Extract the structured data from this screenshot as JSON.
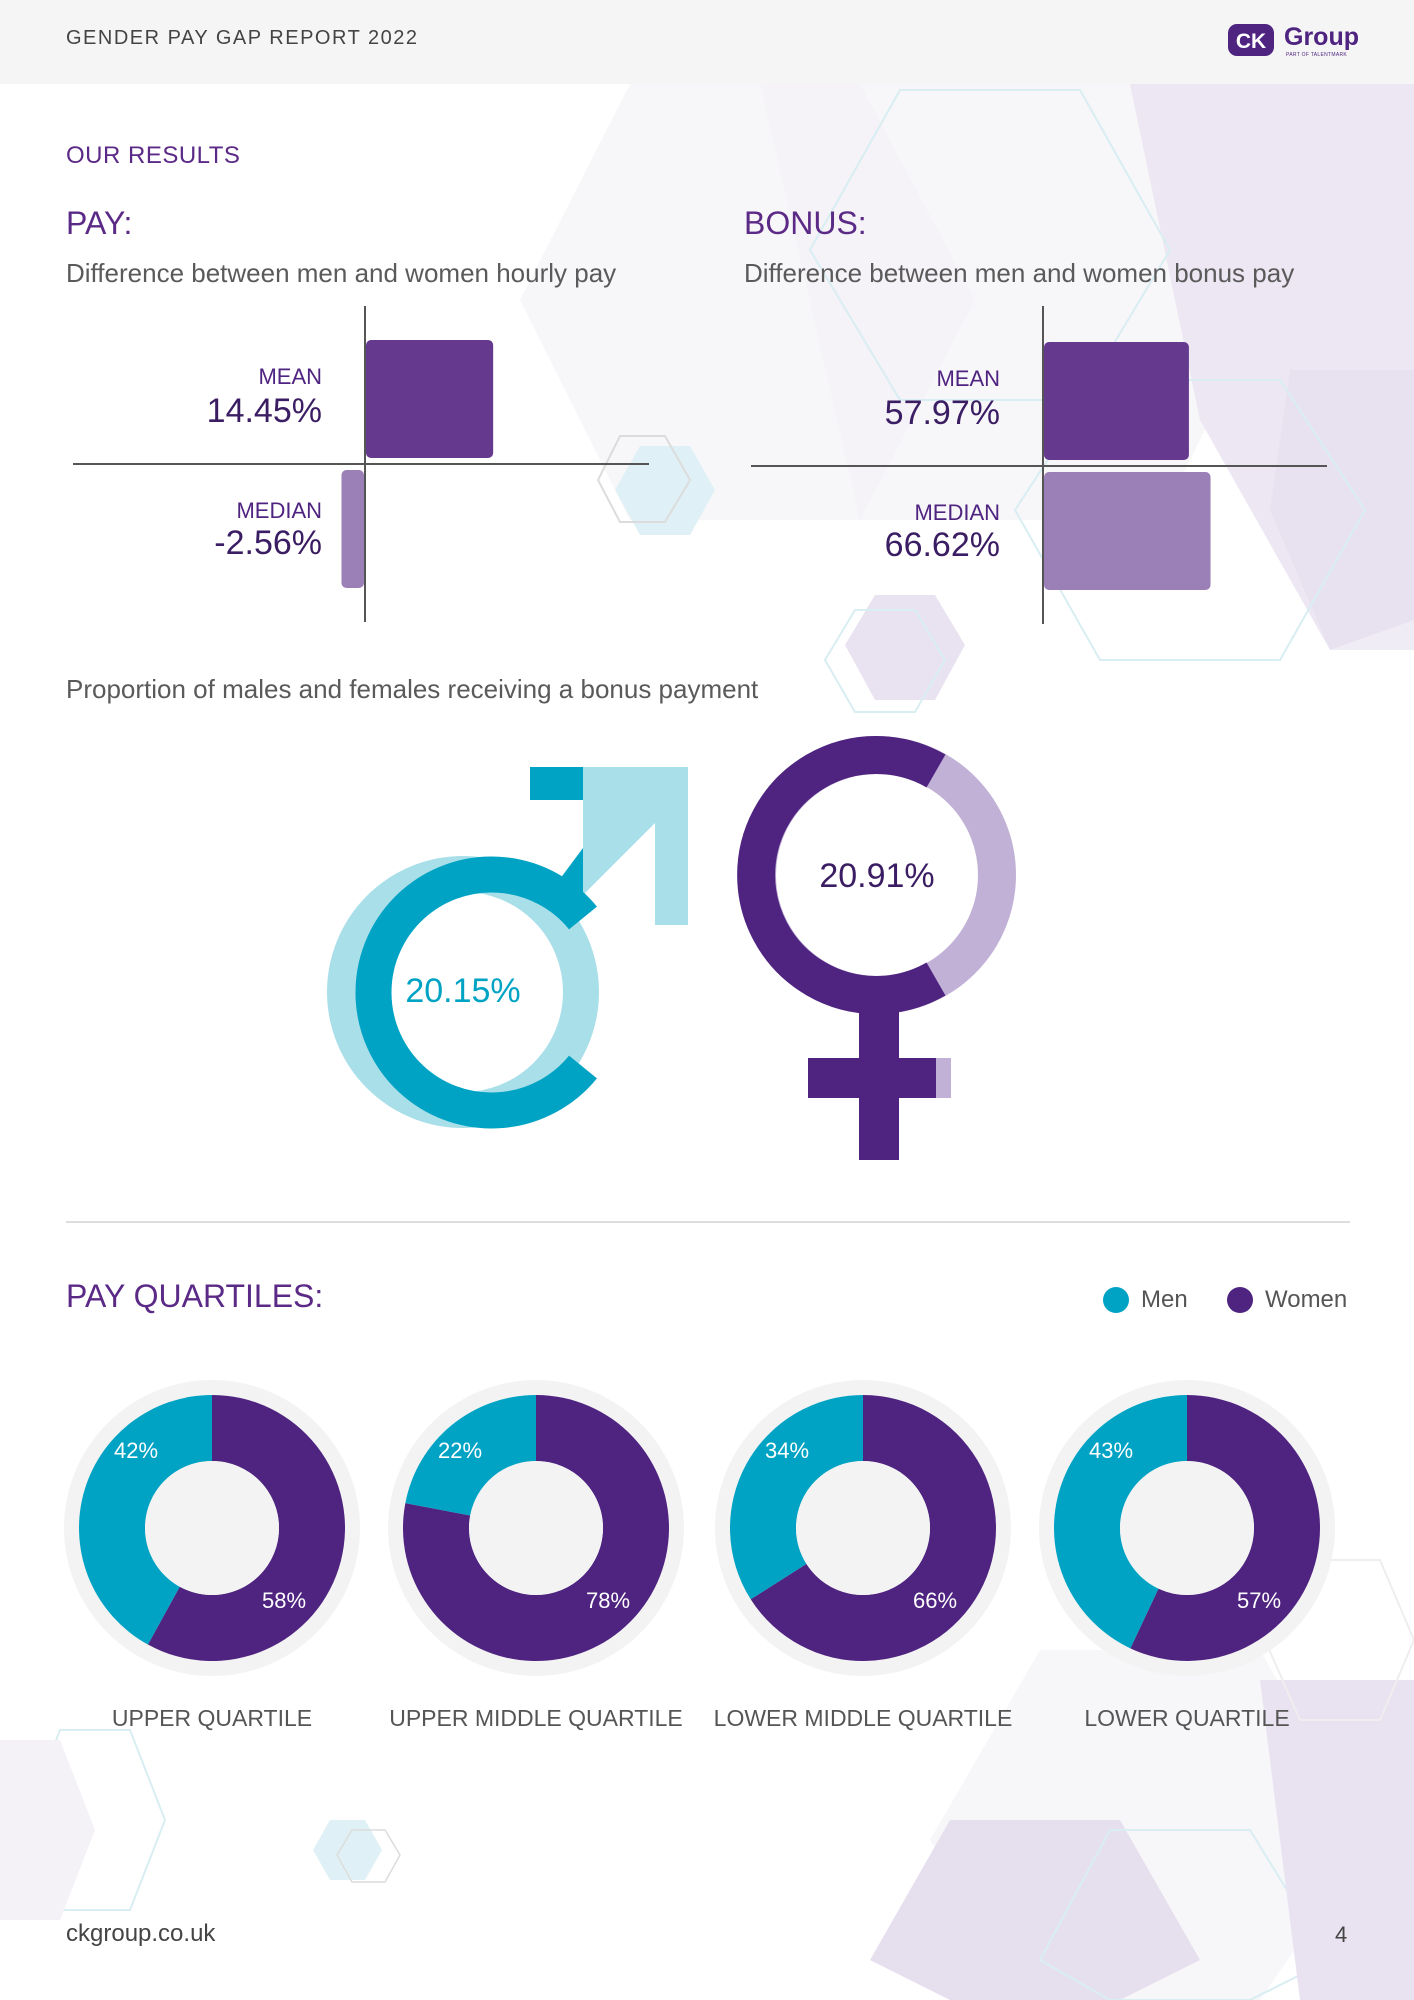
{
  "header": {
    "title": "GENDER PAY GAP REPORT 2022",
    "logo_text": "Group",
    "logo_mark": "CK",
    "logo_sub": "PART OF TALENTMARK"
  },
  "colors": {
    "men": "#00a3c4",
    "men_light": "#a9dfe9",
    "women": "#4f2380",
    "women_light": "#c2b1d6",
    "women_bar_light": "#9b80b8",
    "women_bar_dark": "#653a8e"
  },
  "results": {
    "section_title": "OUR RESULTS",
    "pay": {
      "title": "PAY:",
      "subtitle": "Difference between men and women hourly pay",
      "mean_label": "MEAN",
      "mean_value": "14.45%",
      "median_label": "MEDIAN",
      "median_value": "-2.56%"
    },
    "bonus": {
      "title": "BONUS:",
      "subtitle": "Difference between men and women bonus pay",
      "mean_label": "MEAN",
      "mean_value": "57.97%",
      "median_label": "MEDIAN",
      "median_value": "66.62%"
    }
  },
  "bonus_proportion": {
    "title": "Proportion of males and females receiving a bonus payment",
    "male_value": "20.15%",
    "female_value": "20.91%"
  },
  "quartiles": {
    "title": "PAY QUARTILES:",
    "legend_men": "Men",
    "legend_women": "Women",
    "items": [
      {
        "label": "UPPER QUARTILE",
        "men_label": "42%",
        "women_label": "58%"
      },
      {
        "label": "UPPER MIDDLE QUARTILE",
        "men_label": "22%",
        "women_label": "78%"
      },
      {
        "label": "LOWER MIDDLE QUARTILE",
        "men_label": "34%",
        "women_label": "66%"
      },
      {
        "label": "LOWER QUARTILE",
        "men_label": "43%",
        "women_label": "57%"
      }
    ]
  },
  "chart_data": [
    {
      "type": "bar",
      "categories": [
        "MEAN",
        "MEDIAN"
      ],
      "values": [
        14.45,
        -2.56
      ],
      "title": "PAY:"
    },
    {
      "type": "bar",
      "categories": [
        "MEAN",
        "MEDIAN"
      ],
      "values": [
        57.97,
        66.62
      ],
      "title": "BONUS:"
    },
    {
      "type": "pie",
      "categories": [
        "Men",
        "Women"
      ],
      "values": [
        42,
        58
      ],
      "title": "UPPER QUARTILE"
    },
    {
      "type": "pie",
      "categories": [
        "Men",
        "Women"
      ],
      "values": [
        22,
        78
      ],
      "title": "UPPER MIDDLE QUARTILE"
    },
    {
      "type": "pie",
      "categories": [
        "Men",
        "Women"
      ],
      "values": [
        34,
        66
      ],
      "title": "LOWER MIDDLE QUARTILE"
    },
    {
      "type": "pie",
      "categories": [
        "Men",
        "Women"
      ],
      "values": [
        43,
        57
      ],
      "title": "LOWER QUARTILE"
    }
  ],
  "footer": {
    "url": "ckgroup.co.uk",
    "page": "4"
  }
}
